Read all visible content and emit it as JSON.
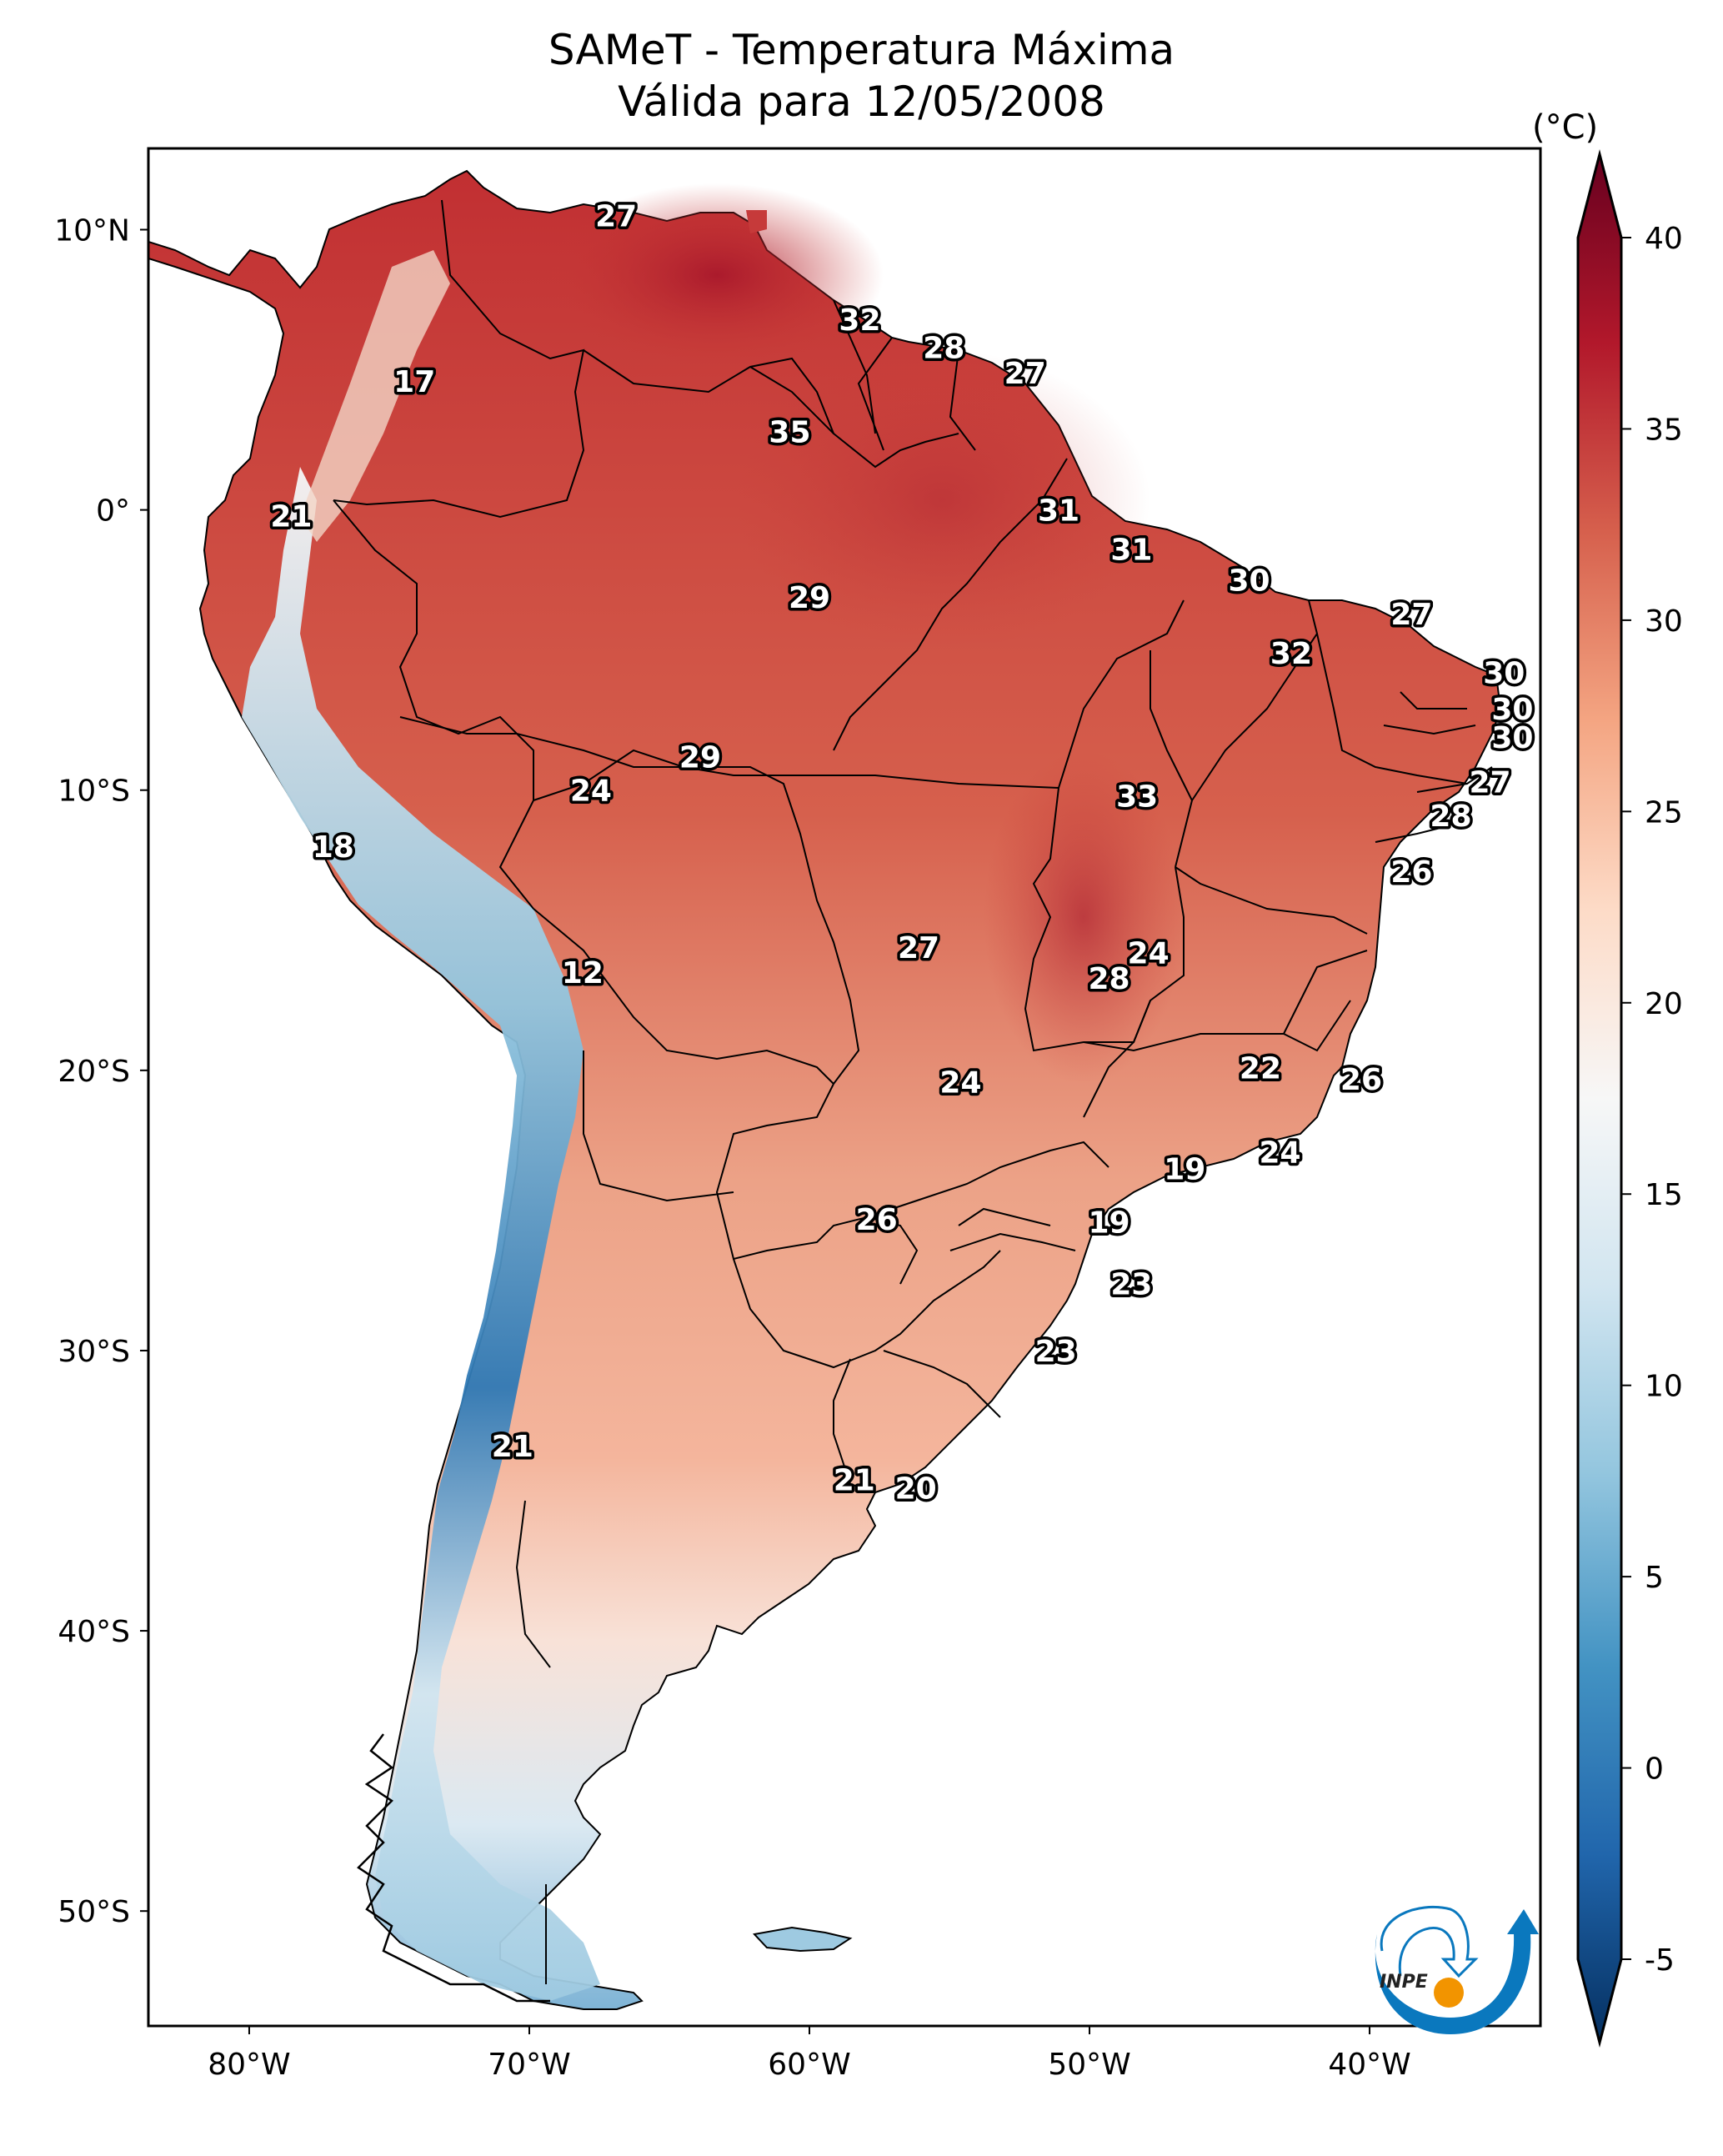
{
  "chart_data": {
    "type": "heatmap",
    "title": "SAMeT - Temperatura Máxima",
    "subtitle": "Válida para 12/05/2008",
    "variable": "Temperatura Máxima",
    "units_label": "(°C)",
    "xlim_deg_lon": [
      -83.6,
      -33.9
    ],
    "ylim_deg_lat": [
      -54.1,
      12.9
    ],
    "x_ticks": [
      {
        "value": -80,
        "label": "80°W"
      },
      {
        "value": -70,
        "label": "70°W"
      },
      {
        "value": -60,
        "label": "60°W"
      },
      {
        "value": -50,
        "label": "50°W"
      },
      {
        "value": -40,
        "label": "40°W"
      }
    ],
    "y_ticks": [
      {
        "value": 10,
        "label": "10°N"
      },
      {
        "value": 0,
        "label": "0°"
      },
      {
        "value": -10,
        "label": "10°S"
      },
      {
        "value": -20,
        "label": "20°S"
      },
      {
        "value": -30,
        "label": "30°S"
      },
      {
        "value": -40,
        "label": "40°S"
      },
      {
        "value": -50,
        "label": "50°S"
      }
    ],
    "colorbar": {
      "min": -5,
      "max": 40,
      "extend": "both",
      "colormap": "RdBu_r",
      "ticks": [
        -5,
        0,
        5,
        10,
        15,
        20,
        25,
        30,
        35,
        40
      ],
      "colors": [
        "#053061",
        "#2166ac",
        "#4393c3",
        "#92c5de",
        "#d1e5f0",
        "#f7f7f7",
        "#fddbc7",
        "#f4a582",
        "#d6604d",
        "#b2182b",
        "#67001f"
      ]
    },
    "station_values": [
      {
        "lon": -66.9,
        "lat": 10.5,
        "value": 27
      },
      {
        "lon": -74.1,
        "lat": 4.6,
        "value": 17
      },
      {
        "lon": -58.2,
        "lat": 6.8,
        "value": 32
      },
      {
        "lon": -55.2,
        "lat": 5.8,
        "value": 28
      },
      {
        "lon": -52.3,
        "lat": 4.9,
        "value": 27
      },
      {
        "lon": -60.7,
        "lat": 2.8,
        "value": 35
      },
      {
        "lon": -78.5,
        "lat": -0.2,
        "value": 21
      },
      {
        "lon": -51.1,
        "lat": 0.0,
        "value": 31
      },
      {
        "lon": -48.5,
        "lat": -1.4,
        "value": 31
      },
      {
        "lon": -60.0,
        "lat": -3.1,
        "value": 29
      },
      {
        "lon": -44.3,
        "lat": -2.5,
        "value": 30
      },
      {
        "lon": -38.5,
        "lat": -3.7,
        "value": 27
      },
      {
        "lon": -42.8,
        "lat": -5.1,
        "value": 32
      },
      {
        "lon": -35.2,
        "lat": -5.8,
        "value": 30
      },
      {
        "lon": -34.9,
        "lat": -7.1,
        "value": 30
      },
      {
        "lon": -34.9,
        "lat": -8.1,
        "value": 30
      },
      {
        "lon": -63.9,
        "lat": -8.8,
        "value": 29
      },
      {
        "lon": -67.8,
        "lat": -10.0,
        "value": 24
      },
      {
        "lon": -48.3,
        "lat": -10.2,
        "value": 33
      },
      {
        "lon": -35.7,
        "lat": -9.7,
        "value": 27
      },
      {
        "lon": -37.1,
        "lat": -10.9,
        "value": 28
      },
      {
        "lon": -77.0,
        "lat": -12.0,
        "value": 18
      },
      {
        "lon": -38.5,
        "lat": -12.9,
        "value": 26
      },
      {
        "lon": -56.1,
        "lat": -15.6,
        "value": 27
      },
      {
        "lon": -47.9,
        "lat": -15.8,
        "value": 24
      },
      {
        "lon": -49.3,
        "lat": -16.7,
        "value": 28
      },
      {
        "lon": -68.1,
        "lat": -16.5,
        "value": 12
      },
      {
        "lon": -43.9,
        "lat": -19.9,
        "value": 22
      },
      {
        "lon": -40.3,
        "lat": -20.3,
        "value": 26
      },
      {
        "lon": -54.6,
        "lat": -20.4,
        "value": 24
      },
      {
        "lon": -43.2,
        "lat": -22.9,
        "value": 24
      },
      {
        "lon": -46.6,
        "lat": -23.5,
        "value": 19
      },
      {
        "lon": -57.6,
        "lat": -25.3,
        "value": 26
      },
      {
        "lon": -49.3,
        "lat": -25.4,
        "value": 19
      },
      {
        "lon": -48.5,
        "lat": -27.6,
        "value": 23
      },
      {
        "lon": -51.2,
        "lat": -30.0,
        "value": 23
      },
      {
        "lon": -70.6,
        "lat": -33.4,
        "value": 21
      },
      {
        "lon": -58.4,
        "lat": -34.6,
        "value": 21
      },
      {
        "lon": -56.2,
        "lat": -34.9,
        "value": 20
      }
    ]
  },
  "logo": {
    "text": "INPE",
    "colors": {
      "blue": "#0a78be",
      "orange": "#f29400"
    }
  }
}
